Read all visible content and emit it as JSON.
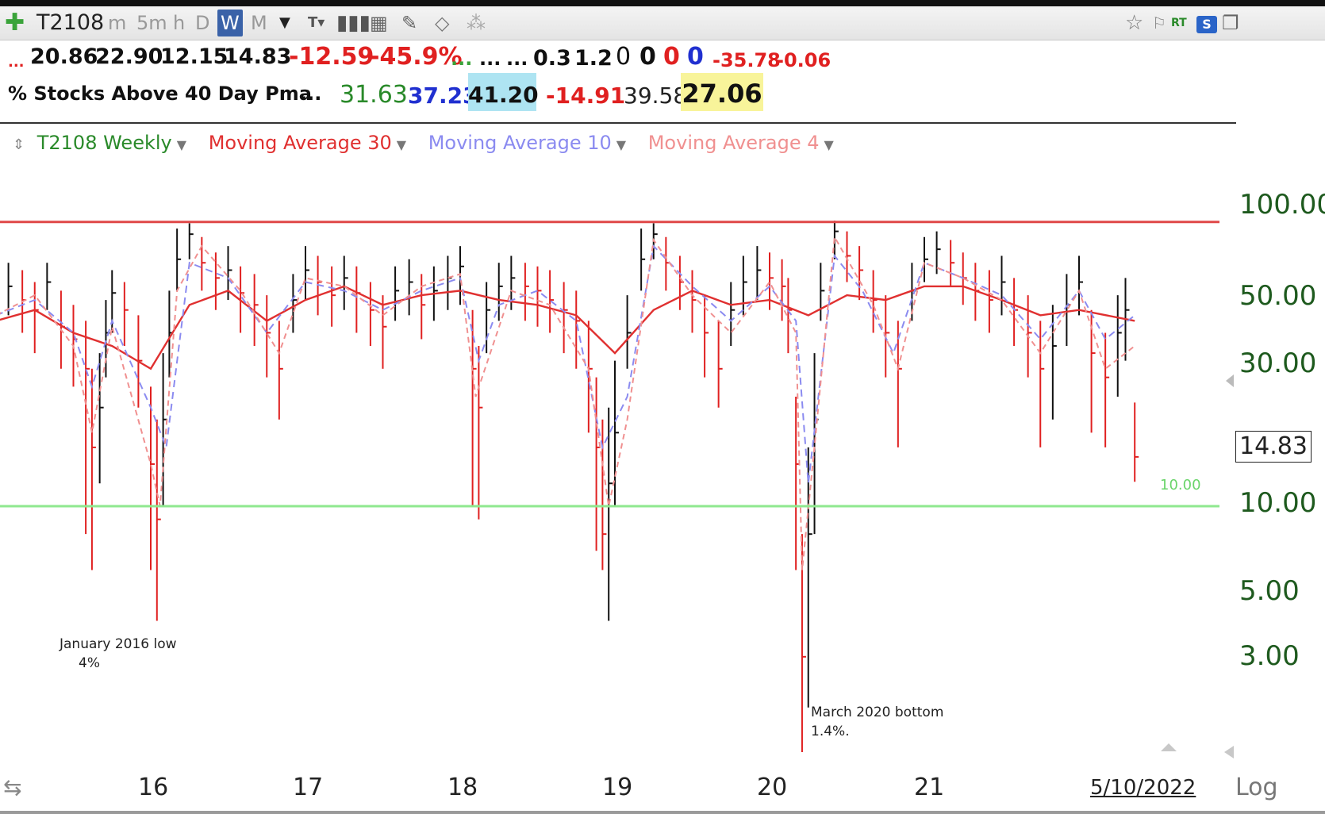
{
  "toolbar": {
    "symbol": "T2108",
    "intervals": [
      "m",
      "5m",
      "h",
      "D",
      "W",
      "M"
    ],
    "active_interval": "W",
    "rt_label": "RT",
    "s_label": "S"
  },
  "quote_line1": {
    "prefix": "...",
    "open": "20.86",
    "high": "22.90",
    "low": "12.15",
    "last": "14.83",
    "change": "-12.59",
    "change_pct": "-45.9%",
    "dots1": "...",
    "dots2": "...",
    "dots3": "...",
    "v1": "0.3",
    "v2": "1.2",
    "z1": "0",
    "z2": "0",
    "z3": "0",
    "z4": "0",
    "neg1": "-35.78",
    "neg2": "-0.06"
  },
  "quote_line2": {
    "title": "% Stocks Above 40 Day Pma",
    "dots": "...",
    "v1": "31.63",
    "v2": "37.23",
    "v3": "41.20",
    "v4": "-14.91",
    "v5": "39.58",
    "v6": "27.06"
  },
  "legend": {
    "main": "T2108 Weekly",
    "ma30": "Moving Average 30",
    "ma10": "Moving Average 10",
    "ma4": "Moving Average 4"
  },
  "colors": {
    "main_green": "#2a8a2a",
    "ma30": "#e03030",
    "ma10": "#8b8bf0",
    "ma4": "#f09090",
    "up_bar": "#111111",
    "down_bar": "#e02020",
    "resistance": "#e04848",
    "support": "#8fe88f"
  },
  "price_box": "14.83",
  "support_label": "10.00",
  "annotations": {
    "jan_line1": "January 2016 low",
    "jan_line2": "4%",
    "mar_line1": "March 2020 bottom",
    "mar_line2": "1.4%."
  },
  "log_label": "Log",
  "chart_data": {
    "type": "bar",
    "title": "% Stocks Above 40 Day Pma",
    "y_scale": "log",
    "ylim": [
      1.4,
      100
    ],
    "y_ticks": [
      "100.00",
      "50.00",
      "30.00",
      "10.00",
      "5.00",
      "3.00"
    ],
    "y_tick_values": [
      100,
      50,
      30,
      10,
      5,
      3
    ],
    "x_ticks": [
      "16",
      "17",
      "18",
      "19",
      "20",
      "21",
      "5/10/2022"
    ],
    "x_tick_values": [
      2016,
      2017,
      2018,
      2019,
      2020,
      2021,
      2022.36
    ],
    "horizontal_lines": [
      {
        "value": 97,
        "color": "#e04848"
      },
      {
        "value": 10.0,
        "color": "#8fe88f"
      }
    ],
    "last_value": 14.83,
    "annotations": [
      {
        "text": "January 2016 low 4%",
        "x": 2016.05,
        "y": 4
      },
      {
        "text": "March 2020 bottom 1.4%.",
        "x": 2020.22,
        "y": 1.4
      }
    ],
    "series": [
      {
        "name": "T2108 Weekly",
        "type": "candlestick-weekly",
        "x": [
          2015.0,
          2015.08,
          2015.17,
          2015.25,
          2015.33,
          2015.42,
          2015.5,
          2015.58,
          2015.62,
          2015.67,
          2015.71,
          2015.75,
          2015.83,
          2015.92,
          2016.0,
          2016.04,
          2016.08,
          2016.12,
          2016.17,
          2016.25,
          2016.33,
          2016.42,
          2016.5,
          2016.58,
          2016.67,
          2016.75,
          2016.83,
          2016.92,
          2017.0,
          2017.08,
          2017.17,
          2017.25,
          2017.33,
          2017.42,
          2017.5,
          2017.58,
          2017.67,
          2017.75,
          2017.83,
          2017.92,
          2018.0,
          2018.08,
          2018.12,
          2018.17,
          2018.25,
          2018.33,
          2018.42,
          2018.5,
          2018.58,
          2018.67,
          2018.75,
          2018.83,
          2018.88,
          2018.92,
          2018.96,
          2019.0,
          2019.08,
          2019.17,
          2019.25,
          2019.33,
          2019.42,
          2019.5,
          2019.58,
          2019.67,
          2019.75,
          2019.83,
          2019.92,
          2020.0,
          2020.08,
          2020.12,
          2020.17,
          2020.21,
          2020.25,
          2020.29,
          2020.33,
          2020.42,
          2020.5,
          2020.58,
          2020.67,
          2020.75,
          2020.83,
          2020.92,
          2021.0,
          2021.08,
          2021.17,
          2021.25,
          2021.33,
          2021.42,
          2021.5,
          2021.58,
          2021.67,
          2021.75,
          2021.83,
          2021.92,
          2022.0,
          2022.08,
          2022.17,
          2022.25,
          2022.3,
          2022.36
        ],
        "close": [
          44,
          58,
          52,
          48,
          60,
          42,
          38,
          30,
          16,
          22,
          40,
          55,
          48,
          32,
          14,
          9,
          20,
          40,
          72,
          88,
          70,
          62,
          66,
          55,
          50,
          40,
          30,
          52,
          66,
          60,
          54,
          62,
          55,
          48,
          42,
          56,
          60,
          50,
          56,
          62,
          68,
          30,
          22,
          48,
          58,
          62,
          58,
          56,
          52,
          48,
          44,
          30,
          16,
          8,
          12,
          18,
          40,
          72,
          88,
          70,
          60,
          52,
          40,
          30,
          48,
          60,
          66,
          62,
          58,
          48,
          14,
          3,
          8,
          20,
          56,
          90,
          74,
          66,
          52,
          40,
          30,
          56,
          72,
          78,
          70,
          62,
          56,
          52,
          60,
          48,
          40,
          30,
          36,
          50,
          60,
          34,
          28,
          40,
          48,
          14.83
        ],
        "low": [
          32,
          46,
          40,
          34,
          48,
          30,
          26,
          8,
          6,
          12,
          28,
          40,
          36,
          22,
          6,
          4,
          10,
          28,
          56,
          72,
          56,
          48,
          52,
          40,
          36,
          28,
          20,
          40,
          52,
          46,
          42,
          48,
          40,
          36,
          30,
          44,
          46,
          38,
          44,
          48,
          50,
          10,
          9,
          34,
          44,
          48,
          44,
          42,
          40,
          34,
          30,
          18,
          7,
          6,
          4,
          10,
          30,
          56,
          72,
          56,
          48,
          40,
          28,
          22,
          36,
          46,
          52,
          48,
          44,
          34,
          6,
          1.4,
          2,
          8,
          44,
          72,
          60,
          52,
          40,
          28,
          16,
          44,
          60,
          64,
          58,
          50,
          44,
          40,
          46,
          36,
          28,
          16,
          20,
          36,
          46,
          18,
          16,
          24,
          32,
          12.15
        ],
        "high": [
          58,
          70,
          66,
          60,
          70,
          56,
          50,
          44,
          30,
          34,
          52,
          66,
          60,
          46,
          26,
          20,
          34,
          56,
          92,
          96,
          86,
          76,
          80,
          68,
          64,
          54,
          44,
          64,
          80,
          74,
          68,
          74,
          68,
          60,
          54,
          68,
          72,
          64,
          68,
          74,
          80,
          48,
          36,
          60,
          70,
          74,
          70,
          68,
          66,
          60,
          56,
          44,
          28,
          20,
          22,
          32,
          54,
          92,
          96,
          86,
          74,
          66,
          54,
          44,
          60,
          74,
          80,
          76,
          72,
          62,
          24,
          8,
          16,
          34,
          70,
          98,
          90,
          80,
          66,
          54,
          44,
          70,
          86,
          90,
          84,
          76,
          70,
          66,
          74,
          62,
          54,
          44,
          50,
          64,
          74,
          48,
          40,
          54,
          62,
          22.9
        ]
      },
      {
        "name": "Moving Average 30",
        "x": [
          2015.0,
          2015.25,
          2015.5,
          2015.75,
          2016.0,
          2016.25,
          2016.5,
          2016.75,
          2017.0,
          2017.25,
          2017.5,
          2017.75,
          2018.0,
          2018.25,
          2018.5,
          2018.75,
          2019.0,
          2019.25,
          2019.5,
          2019.75,
          2020.0,
          2020.25,
          2020.5,
          2020.75,
          2021.0,
          2021.25,
          2021.5,
          2021.75,
          2022.0,
          2022.36
        ],
        "values": [
          44,
          48,
          40,
          36,
          30,
          50,
          56,
          44,
          52,
          58,
          50,
          54,
          56,
          52,
          50,
          46,
          34,
          48,
          56,
          50,
          52,
          46,
          54,
          52,
          58,
          58,
          52,
          46,
          48,
          44
        ]
      },
      {
        "name": "Moving Average 10",
        "x": [
          2015.0,
          2015.25,
          2015.5,
          2015.62,
          2015.75,
          2016.0,
          2016.1,
          2016.25,
          2016.5,
          2016.75,
          2017.0,
          2017.25,
          2017.5,
          2017.75,
          2018.0,
          2018.12,
          2018.25,
          2018.5,
          2018.75,
          2018.92,
          2019.08,
          2019.25,
          2019.5,
          2019.75,
          2020.0,
          2020.17,
          2020.25,
          2020.42,
          2020.6,
          2020.8,
          2021.0,
          2021.25,
          2021.5,
          2021.75,
          2022.0,
          2022.17,
          2022.36
        ],
        "values": [
          46,
          52,
          40,
          26,
          44,
          22,
          16,
          70,
          62,
          40,
          60,
          56,
          48,
          56,
          62,
          32,
          50,
          56,
          44,
          16,
          24,
          80,
          58,
          44,
          58,
          44,
          12,
          74,
          56,
          34,
          70,
          62,
          54,
          38,
          56,
          38,
          46
        ]
      },
      {
        "name": "Moving Average 4",
        "x": [
          2015.0,
          2015.25,
          2015.5,
          2015.62,
          2015.75,
          2016.0,
          2016.06,
          2016.17,
          2016.33,
          2016.58,
          2016.83,
          2017.0,
          2017.25,
          2017.5,
          2017.75,
          2018.0,
          2018.1,
          2018.33,
          2018.58,
          2018.83,
          2018.96,
          2019.08,
          2019.25,
          2019.5,
          2019.75,
          2020.0,
          2020.17,
          2020.21,
          2020.29,
          2020.42,
          2020.67,
          2020.83,
          2021.0,
          2021.25,
          2021.5,
          2021.75,
          2022.0,
          2022.17,
          2022.36
        ],
        "values": [
          46,
          54,
          36,
          18,
          42,
          14,
          10,
          56,
          80,
          56,
          34,
          62,
          58,
          46,
          58,
          64,
          24,
          56,
          50,
          30,
          10,
          20,
          84,
          54,
          40,
          60,
          40,
          6,
          16,
          86,
          50,
          30,
          70,
          62,
          52,
          34,
          56,
          30,
          36
        ]
      }
    ]
  }
}
